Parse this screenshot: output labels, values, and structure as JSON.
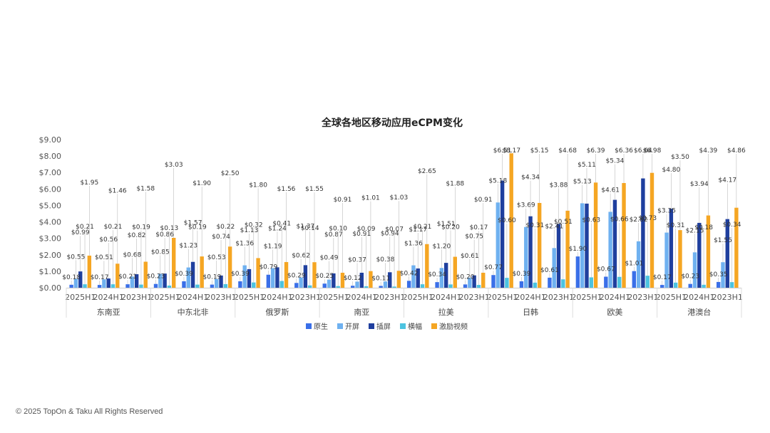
{
  "footer": "© 2025 TopOn & Taku All Rights Reserved",
  "chart_data": {
    "type": "bar",
    "title": "全球各地区移动应用eCPM变化",
    "yticks": [
      "$0.00",
      "$1.00",
      "$2.00",
      "$3.00",
      "$4.00",
      "$5.00",
      "$6.00",
      "$7.00",
      "$8.00",
      "$9.00"
    ],
    "ylim": [
      0,
      9
    ],
    "grid": false,
    "legend_position": "bottom",
    "regions": [
      "东南亚",
      "中东北非",
      "俄罗斯",
      "南亚",
      "拉美",
      "日韩",
      "欧美",
      "港澳台"
    ],
    "periods": [
      "2025H1",
      "2024H1",
      "2023H1"
    ],
    "categories": [
      "东南亚 2025H1",
      "东南亚 2024H1",
      "东南亚 2023H1",
      "中东北非 2025H1",
      "中东北非 2024H1",
      "中东北非 2023H1",
      "俄罗斯 2025H1",
      "俄罗斯 2024H1",
      "俄罗斯 2023H1",
      "南亚 2025H1",
      "南亚 2024H1",
      "南亚 2023H1",
      "拉美 2025H1",
      "拉美 2024H1",
      "拉美 2023H1",
      "日韩 2025H1",
      "日韩 2024H1",
      "日韩 2023H1",
      "欧美 2025H1",
      "欧美 2024H1",
      "欧美 2023H1",
      "港澳台 2025H1",
      "港澳台 2024H1",
      "港澳台 2023H1"
    ],
    "colors": [
      "#3a6fe8",
      "#6fb1f0",
      "#1f3f9e",
      "#4cc3e0",
      "#f5a623"
    ],
    "series": [
      {
        "name": "原生",
        "values": [
          0.18,
          0.17,
          0.21,
          0.23,
          0.39,
          0.19,
          0.39,
          0.79,
          0.29,
          0.25,
          0.12,
          0.11,
          0.42,
          0.34,
          0.2,
          0.77,
          0.39,
          0.61,
          1.9,
          0.67,
          1.01,
          0.17,
          0.23,
          0.35
        ]
      },
      {
        "name": "开屏",
        "values": [
          0.55,
          0.51,
          0.68,
          0.85,
          1.23,
          0.53,
          1.36,
          1.19,
          0.62,
          0.49,
          0.37,
          0.38,
          1.36,
          1.2,
          0.61,
          5.18,
          3.69,
          2.41,
          5.13,
          4.61,
          2.82,
          3.35,
          2.15,
          1.55
        ]
      },
      {
        "name": "插屏",
        "values": [
          0.99,
          0.56,
          0.82,
          0.86,
          1.57,
          0.74,
          1.13,
          1.24,
          1.37,
          0.87,
          0.91,
          0.94,
          1.17,
          1.51,
          0.75,
          6.51,
          4.34,
          3.88,
          5.11,
          5.34,
          6.64,
          4.8,
          3.94,
          4.17
        ]
      },
      {
        "name": "横幅",
        "values": [
          0.21,
          0.21,
          0.19,
          0.13,
          0.19,
          0.22,
          0.32,
          0.41,
          0.14,
          0.1,
          0.09,
          0.07,
          0.21,
          0.2,
          0.17,
          0.6,
          0.31,
          0.51,
          0.63,
          0.66,
          0.73,
          0.31,
          0.18,
          0.34
        ]
      },
      {
        "name": "激励视频",
        "values": [
          1.95,
          1.46,
          1.58,
          3.03,
          1.9,
          2.5,
          1.8,
          1.56,
          1.55,
          0.91,
          1.01,
          1.03,
          2.65,
          1.88,
          0.91,
          8.17,
          5.15,
          4.68,
          6.39,
          6.36,
          6.98,
          3.5,
          4.39,
          4.86
        ]
      }
    ]
  }
}
